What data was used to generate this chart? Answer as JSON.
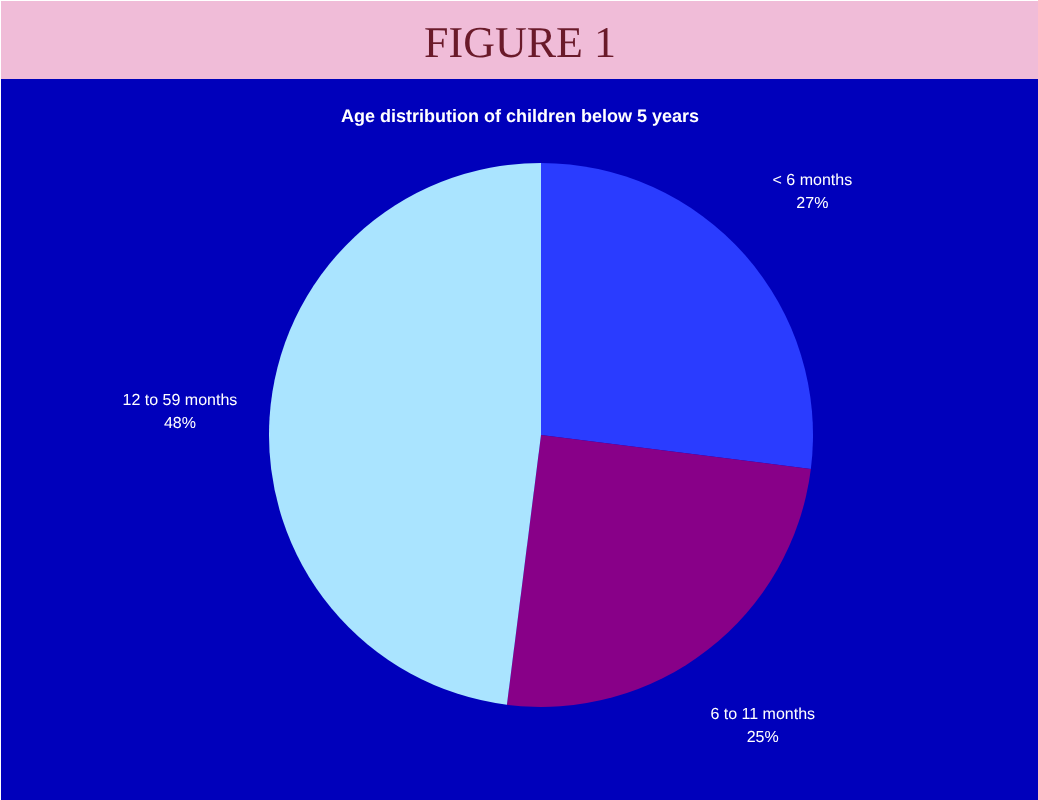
{
  "chart_data": {
    "type": "pie",
    "title": "FIGURE 1",
    "subtitle": "Age distribution of children below 5 years",
    "categories": [
      "< 6 months",
      "6 to 11 months",
      "12 to 59 months"
    ],
    "values": [
      27,
      25,
      48
    ],
    "colors": [
      "#2a3cff",
      "#880088",
      "#aae4ff"
    ],
    "value_labels": [
      "27%",
      "25%",
      "48%"
    ]
  }
}
